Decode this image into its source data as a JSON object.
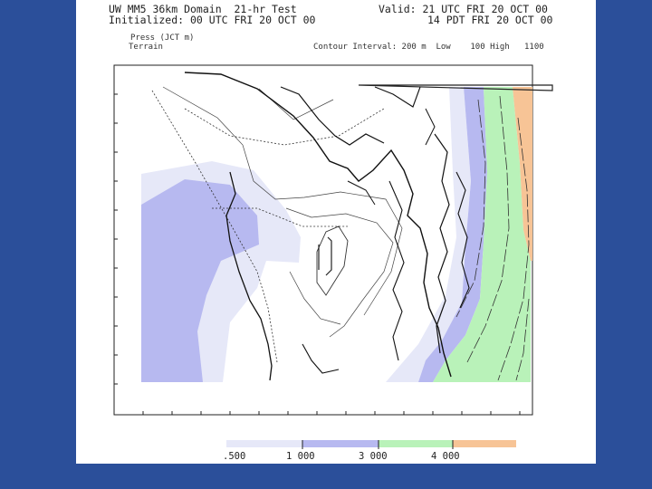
{
  "header": {
    "title_line1": "UW MM5 36km Domain  21-hr Test",
    "title_line2": "Initialized: 00 UTC FRI 20 OCT 00",
    "valid_line1": "Valid: 21 UTC FRI 20 OCT 00",
    "valid_line2": "14 PDT FRI 20 OCT 00",
    "field_line1": "Press (JCT m)",
    "field_line2": "Terrain",
    "contour_info": "Contour Interval: 200 m  Low    100 High   1100"
  },
  "colorbar": {
    "labels": [
      ".500",
      "1 000",
      "3 000",
      "4 000"
    ],
    "colors": [
      "#e6e8f8",
      "#b7b9f0",
      "#b9f2b9",
      "#f7c496"
    ]
  },
  "colors": {
    "background": "#2b4f9a",
    "panel": "#ffffff",
    "light_lavender": "#e6e8f8",
    "lavender": "#b7b9f0",
    "green": "#b9f2b9",
    "orange": "#f7c496"
  }
}
